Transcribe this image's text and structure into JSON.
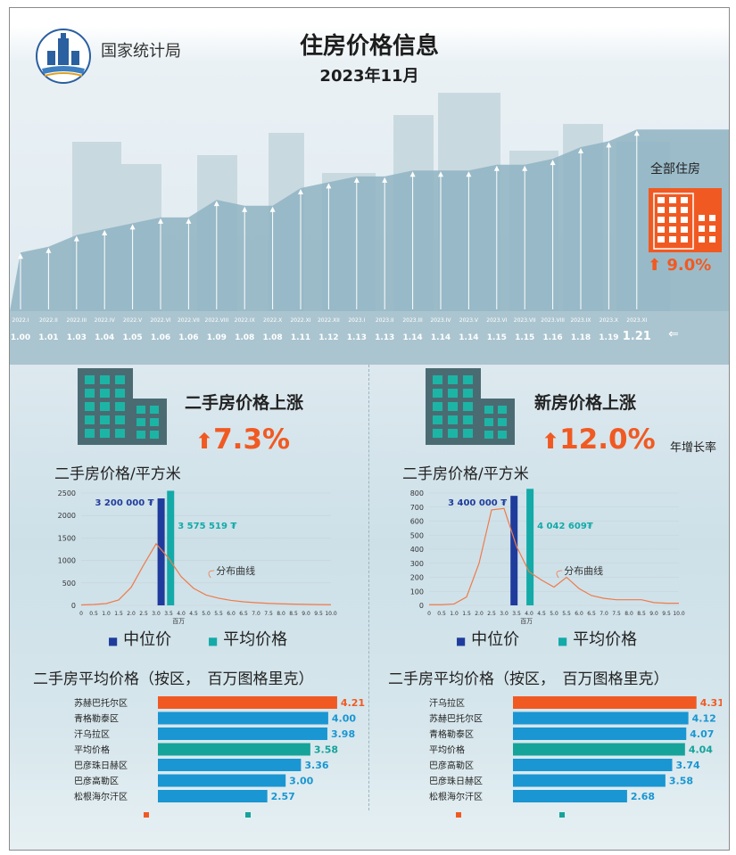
{
  "header": {
    "agency": "国家统计局",
    "title": "住房价格信息",
    "date": "2023年11月"
  },
  "index_chart": {
    "labels": [
      "2022.I",
      "2022.II",
      "2022.III",
      "2022.IV",
      "2022.V",
      "2022.VI",
      "2022.VII",
      "2022.VIII",
      "2022.IX",
      "2022.X",
      "2022.XI",
      "2022.XII",
      "2023.I",
      "2023.II",
      "2023.III",
      "2023.IV",
      "2023.V",
      "2023.VI",
      "2023.VII",
      "2023.VIII",
      "2023.IX",
      "2023.X",
      "2023.XI"
    ],
    "values": [
      1.0,
      1.01,
      1.03,
      1.04,
      1.05,
      1.06,
      1.06,
      1.09,
      1.08,
      1.08,
      1.11,
      1.12,
      1.13,
      1.13,
      1.14,
      1.14,
      1.14,
      1.15,
      1.15,
      1.16,
      1.18,
      1.19,
      1.21
    ],
    "value_labels": [
      "1.00",
      "1.01",
      "1.03",
      "1.04",
      "1.05",
      "1.06",
      "1.06",
      "1.09",
      "1.08",
      "1.08",
      "1.11",
      "1.12",
      "1.13",
      "1.13",
      "1.14",
      "1.14",
      "1.14",
      "1.15",
      "1.15",
      "1.16",
      "1.18",
      "1.19",
      "1.21"
    ],
    "total_label": "全部住房",
    "total_change": "9.0%"
  },
  "secondary": {
    "title": "二手房价格上涨",
    "change": "7.3%",
    "subtitle": "二手房价格/平方米",
    "median_label": "3 200 000 ₮",
    "mean_label": "3 575 519 ₮",
    "curve_label": "分布曲线",
    "x_unit": "百万",
    "legend_median": "中位价",
    "legend_mean": "平均价格",
    "district_title": "二手房平均价格（按区，　百万图格里克）"
  },
  "newhome": {
    "title": "新房价格上涨",
    "change": "12.0%",
    "rate_note": "年增长率",
    "subtitle": "二手房价格/平方米",
    "median_label": "3 400 000 ₮",
    "mean_label": "4 042 609₮",
    "curve_label": "分布曲线",
    "x_unit": "百万",
    "legend_median": "中位价",
    "legend_mean": "平均价格",
    "district_title": "二手房平均价格（按区，　百万图格里克）"
  },
  "colors": {
    "orange": "#f05a22",
    "blue": "#1a96d2",
    "teal": "#15a39a",
    "navy": "#1f3c9c",
    "cyan": "#13aaa8"
  },
  "chart_data": [
    {
      "type": "line",
      "title": "",
      "x": [
        "2022.I",
        "2022.II",
        "2022.III",
        "2022.IV",
        "2022.V",
        "2022.VI",
        "2022.VII",
        "2022.VIII",
        "2022.IX",
        "2022.X",
        "2022.XI",
        "2022.XII",
        "2023.I",
        "2023.II",
        "2023.III",
        "2023.IV",
        "2023.V",
        "2023.VI",
        "2023.VII",
        "2023.VIII",
        "2023.IX",
        "2023.X",
        "2023.XI"
      ],
      "series": [
        {
          "values": [
            1.0,
            1.01,
            1.03,
            1.04,
            1.05,
            1.06,
            1.06,
            1.09,
            1.08,
            1.08,
            1.11,
            1.12,
            1.13,
            1.13,
            1.14,
            1.14,
            1.14,
            1.15,
            1.15,
            1.16,
            1.18,
            1.19,
            1.21
          ]
        }
      ]
    },
    {
      "type": "line",
      "title": "二手房价格/平方米",
      "xlabel": "百万",
      "x_ticks": [
        "0",
        "0.5",
        "1.0",
        "1.5",
        "2.0",
        "2.5",
        "3.0",
        "3.5",
        "4.0",
        "4.5",
        "5.0",
        "5.5",
        "6.0",
        "6.5",
        "7.0",
        "7.5",
        "8.0",
        "8.5",
        "9.0",
        "9.5",
        "10.0"
      ],
      "y_ticks": [
        "0",
        "500",
        "1000",
        "1500",
        "2000",
        "2500"
      ],
      "xlim": [
        0,
        10
      ],
      "ylim": [
        0,
        2500
      ],
      "series": [
        {
          "name": "分布曲线",
          "x": [
            0,
            0.5,
            1.0,
            1.5,
            2.0,
            2.5,
            3.0,
            3.5,
            4.0,
            4.5,
            5.0,
            5.5,
            6.0,
            6.5,
            7.0,
            7.5,
            8.0,
            8.5,
            9.0,
            9.5,
            10.0
          ],
          "values": [
            10,
            20,
            40,
            120,
            400,
            900,
            1370,
            1050,
            640,
            380,
            230,
            160,
            110,
            80,
            60,
            45,
            35,
            28,
            22,
            18,
            15
          ]
        }
      ],
      "markers": [
        {
          "name": "中位价",
          "x": 3.2,
          "height": 2380
        },
        {
          "name": "平均价格",
          "x": 3.58,
          "height": 2550
        }
      ],
      "legend": [
        "中位价",
        "平均价格"
      ]
    },
    {
      "type": "line",
      "title": "二手房价格/平方米",
      "xlabel": "百万",
      "x_ticks": [
        "0",
        "0.5",
        "1.0",
        "1.5",
        "2.0",
        "2.5",
        "3.0",
        "3.5",
        "4.0",
        "4.5",
        "5.0",
        "5.5",
        "6.0",
        "6.5",
        "7.0",
        "7.5",
        "8.0",
        "8.5",
        "9.0",
        "9.5",
        "10.0"
      ],
      "y_ticks": [
        "0",
        "100",
        "200",
        "300",
        "400",
        "500",
        "600",
        "700",
        "800"
      ],
      "xlim": [
        0,
        10
      ],
      "ylim": [
        0,
        800
      ],
      "series": [
        {
          "name": "分布曲线",
          "x": [
            0,
            0.5,
            1.0,
            1.5,
            2.0,
            2.5,
            3.0,
            3.5,
            4.0,
            4.5,
            5.0,
            5.5,
            6.0,
            6.5,
            7.0,
            7.5,
            8.0,
            8.5,
            9.0,
            9.5,
            10.0
          ],
          "values": [
            5,
            5,
            10,
            60,
            300,
            680,
            690,
            420,
            240,
            180,
            130,
            200,
            120,
            70,
            50,
            40,
            40,
            40,
            20,
            15,
            15
          ]
        }
      ],
      "markers": [
        {
          "name": "中位价",
          "x": 3.4,
          "height": 780
        },
        {
          "name": "平均价格",
          "x": 4.04,
          "height": 830
        }
      ],
      "legend": [
        "中位价",
        "平均价格"
      ]
    },
    {
      "type": "bar",
      "title": "二手房平均价格（按区，　百万图格里克）",
      "categories": [
        "苏赫巴托尔区",
        "青格勒泰区",
        "汗乌拉区",
        "平均价格",
        "巴彦珠日赫区",
        "巴彦高勒区",
        "松根海尔汗区"
      ],
      "values": [
        4.21,
        4.0,
        3.98,
        3.58,
        3.36,
        3.0,
        2.57
      ],
      "value_labels": [
        "4.21",
        "4.00",
        "3.98",
        "3.58",
        "3.36",
        "3.00",
        "2.57"
      ],
      "xlim": [
        0,
        4.4
      ]
    },
    {
      "type": "bar",
      "title": "二手房平均价格（按区，　百万图格里克）",
      "categories": [
        "汗乌拉区",
        "苏赫巴托尔区",
        "青格勒泰区",
        "平均价格",
        "巴彦高勒区",
        "巴彦珠日赫区",
        "松根海尔汗区"
      ],
      "values": [
        4.31,
        4.12,
        4.07,
        4.04,
        3.74,
        3.58,
        2.68
      ],
      "value_labels": [
        "4.31",
        "4.12",
        "4.07",
        "4.04",
        "3.74",
        "3.58",
        "2.68"
      ],
      "xlim": [
        0,
        4.4
      ]
    }
  ]
}
